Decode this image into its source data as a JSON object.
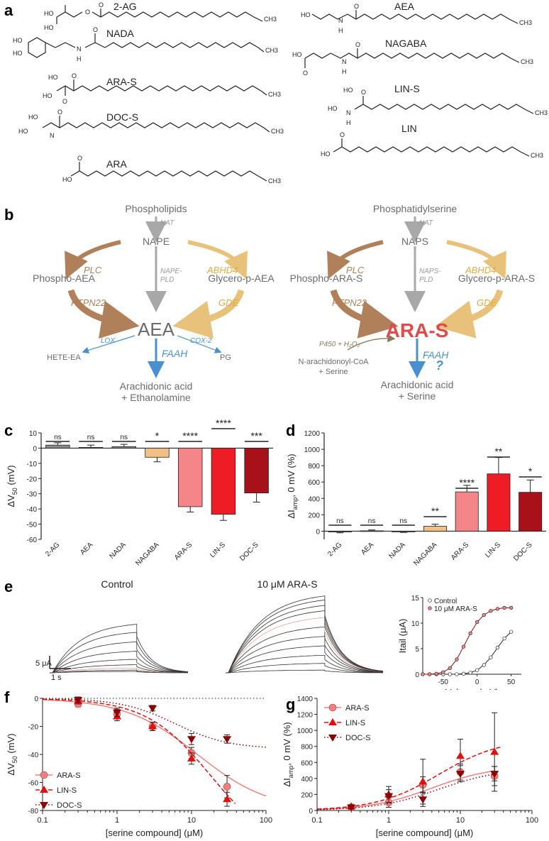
{
  "panels": {
    "a": "a",
    "b": "b",
    "c": "c",
    "d": "d",
    "e": "e",
    "f": "f",
    "g": "g"
  },
  "panel_a": {
    "molecules": [
      "2-AG",
      "NADA",
      "ARA-S",
      "DOC-S",
      "ARA",
      "AEA",
      "NAGABA",
      "LIN-S",
      "LIN"
    ],
    "atoms": {
      "OH": "OH",
      "HO": "HO",
      "O": "O",
      "N": "N",
      "H": "H",
      "CH3": "CH3"
    }
  },
  "panel_b": {
    "left": {
      "top": "Phospholipids",
      "enzyme_nat": "NAT",
      "mid": "NAPE",
      "enzyme_pld_1": "NAPE-",
      "enzyme_pld_2": "PLD",
      "plc": "PLC",
      "ptpn22": "PTPN22",
      "phospho": "Phospho-AEA",
      "abhd4": "ABHD4",
      "gde": "GDE",
      "glycero": "Glycero-p-AEA",
      "center": "AEA",
      "lox": "LOX",
      "cox2": "COX-2",
      "faah": "FAAH",
      "hete": "HETE-EA",
      "pg": "PG",
      "product_1": "Arachidonic acid",
      "product_2": "+ Ethanolamine"
    },
    "right": {
      "top": "Phosphatidylserine",
      "enzyme_nat": "NAT",
      "mid": "NAPS",
      "enzyme_pld_1": "NAPS-",
      "enzyme_pld_2": "PLD",
      "plc": "PLC",
      "ptpn22": "PTPN22",
      "phospho": "Phospho-ARA-S",
      "abhd4": "ABHD4",
      "gde": "GDE",
      "glycero": "Glycero-p-ARA-S",
      "center": "ARA-S",
      "p450": "P450 + H₂O₂",
      "coa_1": "N-arachidonoyl-CoA",
      "coa_2": "+ Serine",
      "faah": "FAAH",
      "question": "?",
      "product_1": "Arachidonic acid",
      "product_2": "+ Serine"
    },
    "colors": {
      "brown": "#b0805a",
      "gold": "#e8c27a",
      "gray": "#a8a8a8",
      "blue": "#4a90d0",
      "red": "#e04a4a",
      "text": "#6b6b6b"
    }
  },
  "panel_c": {
    "ylabel": "ΔV50 (mV)",
    "categories": [
      "2-AG",
      "AEA",
      "NADA",
      "NAGABA",
      "ARA-S",
      "LIN-S",
      "DOC-S"
    ],
    "significance": [
      "ns",
      "ns",
      "ns",
      "*",
      "****",
      "****",
      "***"
    ]
  },
  "panel_d": {
    "ylabel": "ΔIamp, 0 mV (%)",
    "categories": [
      "2-AG",
      "AEA",
      "NADA",
      "NAGABA",
      "ARA-S",
      "LIN-S",
      "DOC-S"
    ],
    "significance": [
      "ns",
      "ns",
      "ns",
      "**",
      "****",
      "**",
      "*"
    ]
  },
  "panel_e": {
    "title_control": "Control",
    "title_aras": "10 μM ARA-S",
    "scale_current": "5 μA",
    "scale_time": "1 s"
  },
  "panel_f": {
    "xlabel": "[serine compound] (μM)",
    "ylabel": "ΔV50 (mV)"
  },
  "panel_g": {
    "xlabel": "[serine compound] (μM)",
    "ylabel": "ΔIamp, 0 mV (%)"
  },
  "chart_data": [
    {
      "id": "c",
      "type": "bar",
      "categories": [
        "2-AG",
        "AEA",
        "NADA",
        "NAGABA",
        "ARA-S",
        "LIN-S",
        "DOC-S"
      ],
      "values": [
        2,
        0.5,
        1,
        -6,
        -38.5,
        -43.5,
        -29.5
      ],
      "errors": [
        1.5,
        1.5,
        1.5,
        3,
        3.5,
        4,
        6
      ],
      "colors": [
        "#8a8a8a",
        "#8a8a8a",
        "#8a8a8a",
        "#f2c084",
        "#f4868a",
        "#ee1c24",
        "#a8101a"
      ],
      "ylabel": "ΔV50 (mV)",
      "ylim": [
        -60,
        10
      ],
      "yticks": [
        10,
        0,
        -10,
        -20,
        -30,
        -40,
        -50,
        -60
      ]
    },
    {
      "id": "d",
      "type": "bar",
      "categories": [
        "2-AG",
        "AEA",
        "NADA",
        "NAGABA",
        "ARA-S",
        "LIN-S",
        "DOC-S"
      ],
      "values": [
        -10,
        5,
        -5,
        60,
        480,
        700,
        475
      ],
      "errors": [
        10,
        10,
        10,
        25,
        80,
        200,
        150
      ],
      "colors": [
        "#8a8a8a",
        "#8a8a8a",
        "#8a8a8a",
        "#f2c084",
        "#f4868a",
        "#ee1c24",
        "#a8101a"
      ],
      "ylabel": "ΔIamp, 0 mV (%)",
      "ylim": [
        -100,
        1200
      ],
      "yticks": [
        0,
        200,
        400,
        600,
        800,
        1000,
        1200
      ]
    },
    {
      "id": "e-inset",
      "type": "scatter",
      "xlabel": "Voltage (mV)",
      "ylabel": "Itail (μA)",
      "xlim": [
        -80,
        65
      ],
      "ylim": [
        0,
        15
      ],
      "xticks": [
        -50,
        0,
        50
      ],
      "yticks": [
        0,
        5,
        10,
        15
      ],
      "series": [
        {
          "name": "Control",
          "color": "#ffffff",
          "x": [
            -80,
            -70,
            -60,
            -50,
            -40,
            -30,
            -20,
            -10,
            0,
            10,
            20,
            30,
            40,
            50
          ],
          "y": [
            0,
            0,
            0,
            0,
            0,
            0,
            0.1,
            0.3,
            0.8,
            1.8,
            3.3,
            5.2,
            7,
            8.3
          ]
        },
        {
          "name": "10 μM ARA-S",
          "color": "#f4868a",
          "x": [
            -80,
            -70,
            -60,
            -50,
            -40,
            -30,
            -20,
            -10,
            0,
            10,
            20,
            30,
            40,
            50
          ],
          "y": [
            0,
            0,
            0.1,
            0.4,
            1.2,
            2.9,
            5.4,
            8,
            10.2,
            11.6,
            12.4,
            12.8,
            13,
            13
          ]
        }
      ]
    },
    {
      "id": "f",
      "type": "scatter",
      "xscale": "log",
      "xlabel": "[serine compound] (μM)",
      "ylabel": "ΔV50 (mV)",
      "xlim": [
        0.1,
        100
      ],
      "ylim": [
        -80,
        0
      ],
      "xticks": [
        0.1,
        1,
        10,
        100
      ],
      "yticks": [
        0,
        -20,
        -40,
        -60,
        -80
      ],
      "series": [
        {
          "name": "ARA-S",
          "color": "#f08080",
          "x": [
            0.3,
            1,
            3,
            10,
            30
          ],
          "y": [
            -4,
            -11,
            -20,
            -39,
            -63
          ],
          "errors": [
            2,
            3,
            3,
            4,
            8
          ]
        },
        {
          "name": "LIN-S",
          "color": "#e01010",
          "x": [
            0.3,
            1,
            3,
            10,
            30
          ],
          "y": [
            -2,
            -13,
            -20,
            -43,
            -72
          ],
          "errors": [
            2,
            3,
            3,
            4,
            5
          ]
        },
        {
          "name": "DOC-S",
          "color": "#8b0000",
          "x": [
            0.3,
            1,
            3,
            10,
            30
          ],
          "y": [
            -1,
            -10,
            -7,
            -29,
            -29
          ],
          "errors": [
            2,
            3,
            2,
            4,
            3
          ]
        }
      ]
    },
    {
      "id": "g",
      "type": "scatter",
      "xscale": "log",
      "xlabel": "[serine compound] (μM)",
      "ylabel": "ΔIamp, 0 mV (%)",
      "xlim": [
        0.1,
        100
      ],
      "ylim": [
        0,
        1400
      ],
      "xticks": [
        0.1,
        1,
        10,
        100
      ],
      "yticks": [
        0,
        200,
        400,
        600,
        800,
        1000,
        1200,
        1400
      ],
      "series": [
        {
          "name": "ARA-S",
          "color": "#f08080",
          "x": [
            0.3,
            1,
            3,
            10,
            30
          ],
          "y": [
            40,
            100,
            320,
            480,
            430
          ],
          "errors": [
            20,
            60,
            100,
            100,
            120
          ]
        },
        {
          "name": "LIN-S",
          "color": "#e01010",
          "x": [
            0.3,
            1,
            3,
            10,
            30
          ],
          "y": [
            50,
            200,
            360,
            680,
            730
          ],
          "errors": [
            20,
            100,
            280,
            210,
            490
          ]
        },
        {
          "name": "DOC-S",
          "color": "#8b0000",
          "x": [
            0.3,
            1,
            3,
            10,
            30
          ],
          "y": [
            40,
            180,
            140,
            460,
            460
          ],
          "errors": [
            20,
            80,
            90,
            100,
            90
          ]
        }
      ]
    }
  ]
}
